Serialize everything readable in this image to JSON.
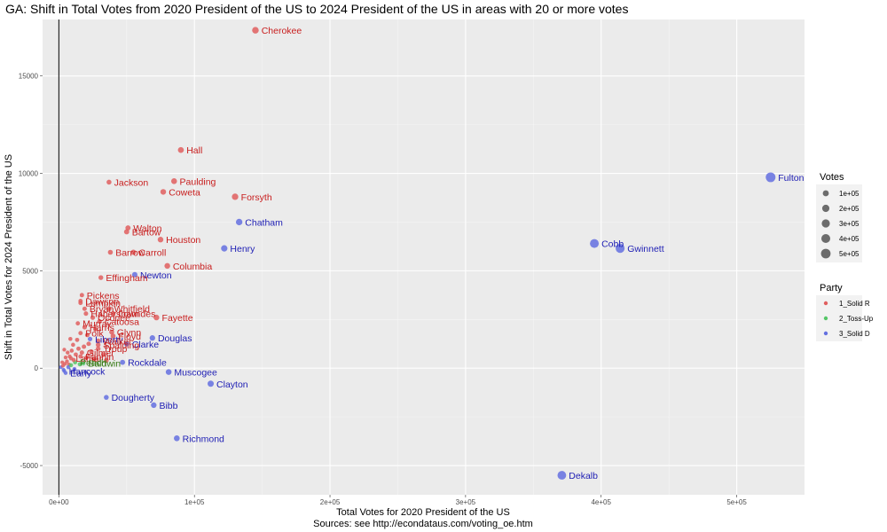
{
  "chart_data": {
    "type": "scatter",
    "title": "GA: Shift in Total Votes from 2020 President of the US to 2024 President of the US in areas with 20 or more votes",
    "xlabel": "Total Votes for 2020 President of the US",
    "caption": "Sources: see http://econdataus.com/voting_oe.htm",
    "ylabel": "Shift in Total Votes for 2024 President of the US",
    "xlim": [
      -12000,
      550000
    ],
    "ylim": [
      -6500,
      17900
    ],
    "x_ticks": [
      0,
      100000,
      200000,
      300000,
      400000,
      500000
    ],
    "x_tick_labels": [
      "0e+00",
      "1e+05",
      "2e+05",
      "3e+05",
      "4e+05",
      "5e+05"
    ],
    "y_ticks": [
      -5000,
      0,
      5000,
      10000,
      15000
    ],
    "y_tick_labels": [
      "-5000",
      "0",
      "5000",
      "10000",
      "15000"
    ],
    "grid": true,
    "vline_x": 0,
    "size_legend": {
      "title": "Votes",
      "values": [
        100000,
        200000,
        300000,
        400000,
        500000
      ],
      "labels": [
        "1e+05",
        "2e+05",
        "3e+05",
        "4e+05",
        "5e+05"
      ]
    },
    "party_legend": {
      "title": "Party",
      "entries": [
        {
          "key": "R",
          "label": "1_Solid R"
        },
        {
          "key": "T",
          "label": "2_Toss-Up"
        },
        {
          "key": "D",
          "label": "3_Solid D"
        }
      ]
    },
    "colors": {
      "R": "#e05f5f",
      "T": "#55c667",
      "D": "#6470e0",
      "R_text": "#c81e1e",
      "D_text": "#1e1eb4",
      "T_text": "#3a7d18"
    },
    "points": [
      {
        "name": "Cherokee",
        "x": 145000,
        "y": 17350,
        "p": "R"
      },
      {
        "name": "Hall",
        "x": 90000,
        "y": 11200,
        "p": "R"
      },
      {
        "name": "Jackson",
        "x": 37000,
        "y": 9550,
        "p": "R"
      },
      {
        "name": "Paulding",
        "x": 85000,
        "y": 9600,
        "p": "R"
      },
      {
        "name": "Coweta",
        "x": 77000,
        "y": 9050,
        "p": "R"
      },
      {
        "name": "Forsyth",
        "x": 130000,
        "y": 8800,
        "p": "R"
      },
      {
        "name": "Chatham",
        "x": 133000,
        "y": 7500,
        "p": "D"
      },
      {
        "name": "Walton",
        "x": 51000,
        "y": 7200,
        "p": "R"
      },
      {
        "name": "Bartow",
        "x": 50000,
        "y": 7000,
        "p": "R"
      },
      {
        "name": "Houston",
        "x": 75000,
        "y": 6600,
        "p": "R"
      },
      {
        "name": "Henry",
        "x": 122000,
        "y": 6150,
        "p": "D"
      },
      {
        "name": "Barrow",
        "x": 38000,
        "y": 5950,
        "p": "R"
      },
      {
        "name": "Carroll",
        "x": 55000,
        "y": 5950,
        "p": "R"
      },
      {
        "name": "Columbia",
        "x": 80000,
        "y": 5250,
        "p": "R"
      },
      {
        "name": "Newton",
        "x": 56000,
        "y": 4800,
        "p": "D"
      },
      {
        "name": "Effingham",
        "x": 31000,
        "y": 4650,
        "p": "R"
      },
      {
        "name": "Fulton",
        "x": 525000,
        "y": 9800,
        "p": "D"
      },
      {
        "name": "Cobb",
        "x": 395000,
        "y": 6400,
        "p": "D"
      },
      {
        "name": "Gwinnett",
        "x": 414000,
        "y": 6150,
        "p": "D"
      },
      {
        "name": "Pickens",
        "x": 17000,
        "y": 3750,
        "p": "R"
      },
      {
        "name": "Dawson",
        "x": 16000,
        "y": 3450,
        "p": "R"
      },
      {
        "name": "Fayette",
        "x": 72000,
        "y": 2600,
        "p": "R"
      },
      {
        "name": "Douglas",
        "x": 69000,
        "y": 1550,
        "p": "D"
      },
      {
        "name": "Clarke",
        "x": 50000,
        "y": 1250,
        "p": "D"
      },
      {
        "name": "Rockdale",
        "x": 47000,
        "y": 300,
        "p": "D"
      },
      {
        "name": "Muscogee",
        "x": 81000,
        "y": -200,
        "p": "D"
      },
      {
        "name": "Clayton",
        "x": 112000,
        "y": -800,
        "p": "D"
      },
      {
        "name": "Dougherty",
        "x": 35000,
        "y": -1500,
        "p": "D"
      },
      {
        "name": "Bibb",
        "x": 70000,
        "y": -1900,
        "p": "D"
      },
      {
        "name": "Richmond",
        "x": 87000,
        "y": -3600,
        "p": "D"
      },
      {
        "name": "Dekalb",
        "x": 371000,
        "y": -5500,
        "p": "D"
      },
      {
        "name": "Lumpkin",
        "x": 16000,
        "y": 3350,
        "p": "R"
      },
      {
        "name": "Bryan",
        "x": 19000,
        "y": 3050,
        "p": "R"
      },
      {
        "name": "Whitfield",
        "x": 37000,
        "y": 3050,
        "p": "R"
      },
      {
        "name": "Habersham",
        "x": 20000,
        "y": 2800,
        "p": "R"
      },
      {
        "name": "Lowndes",
        "x": 40000,
        "y": 2800,
        "p": "R"
      },
      {
        "name": "Oconee",
        "x": 25000,
        "y": 2600,
        "p": "R"
      },
      {
        "name": "Catoosa",
        "x": 30000,
        "y": 2400,
        "p": "R"
      },
      {
        "name": "Murray",
        "x": 14000,
        "y": 2300,
        "p": "R"
      },
      {
        "name": "Harris",
        "x": 19000,
        "y": 2100,
        "p": "R"
      },
      {
        "name": "Glynn",
        "x": 39000,
        "y": 1850,
        "p": "R"
      },
      {
        "name": "Polk",
        "x": 16000,
        "y": 1800,
        "p": "R"
      },
      {
        "name": "Floyd",
        "x": 40000,
        "y": 1650,
        "p": "R"
      },
      {
        "name": "Liberty",
        "x": 23000,
        "y": 1500,
        "p": "D"
      },
      {
        "name": "Walker",
        "x": 29000,
        "y": 1400,
        "p": "R"
      },
      {
        "name": "Spalding",
        "x": 29000,
        "y": 1200,
        "p": "R"
      },
      {
        "name": "Troup",
        "x": 29000,
        "y": 1000,
        "p": "R"
      },
      {
        "name": "Gilmer",
        "x": 17000,
        "y": 800,
        "p": "R"
      },
      {
        "name": "Fannin",
        "x": 16000,
        "y": 600,
        "p": "R"
      },
      {
        "name": "Lamar",
        "x": 9000,
        "y": 500,
        "p": "R"
      },
      {
        "name": "Peach",
        "x": 12000,
        "y": 300,
        "p": "T"
      },
      {
        "name": "Baldwin",
        "x": 18000,
        "y": 250,
        "p": "T"
      },
      {
        "name": "Early",
        "x": 5000,
        "y": -250,
        "p": "D"
      },
      {
        "name": "Hancock",
        "x": 4000,
        "y": -150,
        "p": "D"
      },
      {
        "name": "",
        "x": 1500,
        "y": 50,
        "p": "D"
      },
      {
        "name": "",
        "x": 3000,
        "y": 120,
        "p": "R"
      },
      {
        "name": "",
        "x": 4500,
        "y": 220,
        "p": "R"
      },
      {
        "name": "",
        "x": 6000,
        "y": 350,
        "p": "R"
      },
      {
        "name": "",
        "x": 7500,
        "y": 180,
        "p": "R"
      },
      {
        "name": "",
        "x": 8000,
        "y": 600,
        "p": "R"
      },
      {
        "name": "",
        "x": 9500,
        "y": 900,
        "p": "R"
      },
      {
        "name": "",
        "x": 10500,
        "y": 1200,
        "p": "R"
      },
      {
        "name": "",
        "x": 11000,
        "y": 420,
        "p": "R"
      },
      {
        "name": "",
        "x": 12500,
        "y": 700,
        "p": "R"
      },
      {
        "name": "",
        "x": 13500,
        "y": 1450,
        "p": "R"
      },
      {
        "name": "",
        "x": 14500,
        "y": 1000,
        "p": "R"
      },
      {
        "name": "",
        "x": 6500,
        "y": 800,
        "p": "R"
      },
      {
        "name": "",
        "x": 5000,
        "y": 550,
        "p": "R"
      },
      {
        "name": "",
        "x": 2500,
        "y": 300,
        "p": "R"
      },
      {
        "name": "",
        "x": 3500,
        "y": -80,
        "p": "D"
      },
      {
        "name": "",
        "x": 7000,
        "y": 50,
        "p": "D"
      },
      {
        "name": "",
        "x": 9000,
        "y": 150,
        "p": "T"
      },
      {
        "name": "",
        "x": 20500,
        "y": 550,
        "p": "R"
      },
      {
        "name": "",
        "x": 22000,
        "y": 1250,
        "p": "R"
      },
      {
        "name": "",
        "x": 24000,
        "y": 850,
        "p": "R"
      },
      {
        "name": "",
        "x": 26000,
        "y": 450,
        "p": "R"
      },
      {
        "name": "",
        "x": 33000,
        "y": 700,
        "p": "R"
      },
      {
        "name": "",
        "x": 35000,
        "y": 400,
        "p": "R"
      },
      {
        "name": "",
        "x": 27000,
        "y": 2000,
        "p": "R"
      },
      {
        "name": "",
        "x": 21000,
        "y": 1700,
        "p": "R"
      },
      {
        "name": "",
        "x": 15500,
        "y": 200,
        "p": "T"
      },
      {
        "name": "",
        "x": 11500,
        "y": -50,
        "p": "D"
      },
      {
        "name": "",
        "x": 18500,
        "y": 1100,
        "p": "R"
      },
      {
        "name": "",
        "x": 8500,
        "y": 1500,
        "p": "R"
      },
      {
        "name": "",
        "x": 4000,
        "y": 950,
        "p": "R"
      }
    ]
  }
}
